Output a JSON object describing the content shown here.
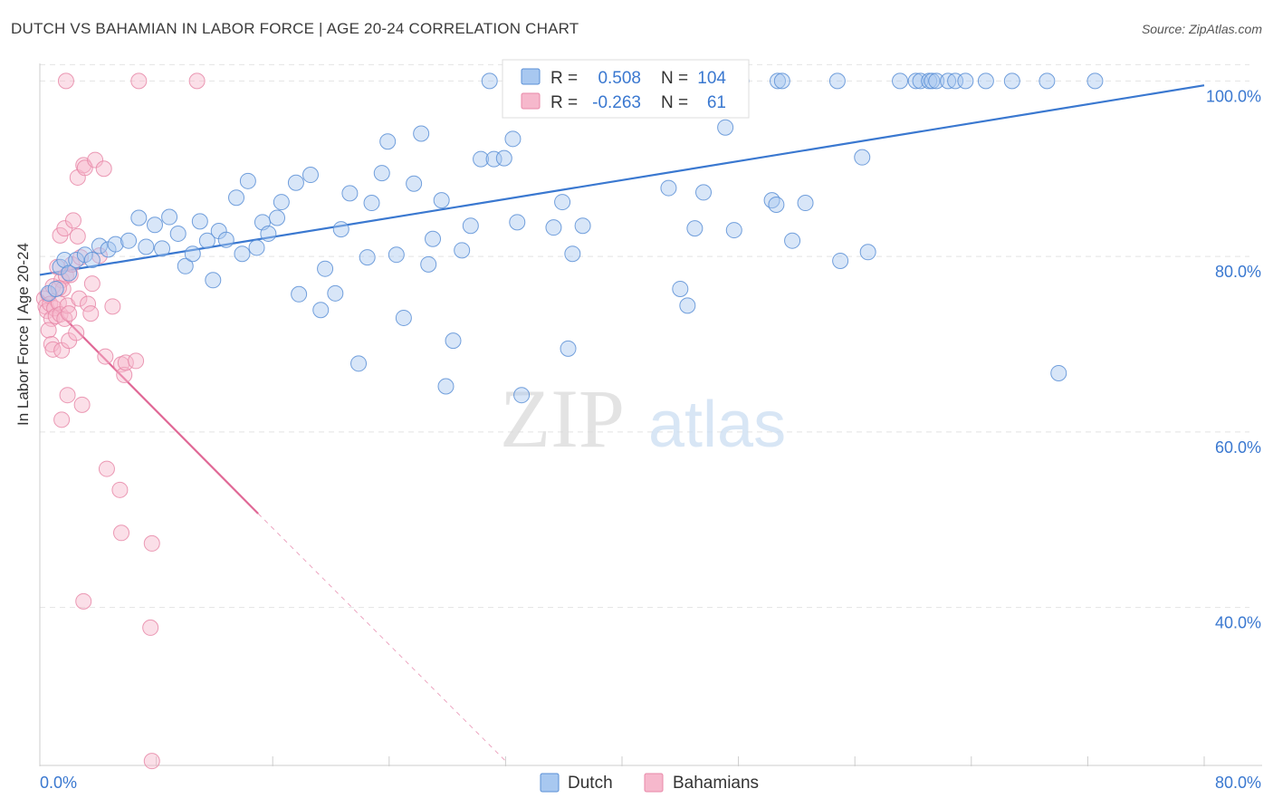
{
  "header": {
    "title": "DUTCH VS BAHAMIAN IN LABOR FORCE | AGE 20-24 CORRELATION CHART",
    "source": "Source: ZipAtlas.com"
  },
  "colors": {
    "dutch_fill": "#a8c8f0",
    "dutch_stroke": "#5a8fd6",
    "dutch_line": "#3a78d0",
    "bahamian_fill": "#f6b8cc",
    "bahamian_stroke": "#e888a8",
    "bahamian_line": "#e06896",
    "axis_text": "#3a78d0",
    "grid": "#e4e4e4"
  },
  "watermark": {
    "zip": "ZIP",
    "atlas": "atlas"
  },
  "legend_box": {
    "rows": [
      {
        "r_label": "R =",
        "r_value": "0.508",
        "n_label": "N =",
        "n_value": "104"
      },
      {
        "r_label": "R =",
        "r_value": "-0.263",
        "n_label": "N =",
        "n_value": "61"
      }
    ]
  },
  "chart_data": {
    "type": "scatter",
    "title": "DUTCH VS BAHAMIAN IN LABOR FORCE | AGE 20-24 CORRELATION CHART",
    "xlabel": "",
    "ylabel": "In Labor Force | Age 20-24",
    "xlim": [
      0,
      80
    ],
    "ylim": [
      22,
      102
    ],
    "x_tick_labels": [
      "0.0%",
      "80.0%"
    ],
    "y_ticks": [
      40,
      60,
      80,
      100
    ],
    "y_tick_labels": [
      "40.0%",
      "60.0%",
      "80.0%",
      "100.0%"
    ],
    "grid": true,
    "legend": "bottom-center",
    "series": [
      {
        "name": "Dutch",
        "R": 0.508,
        "N": 104,
        "trend": {
          "x": [
            0,
            80
          ],
          "y": [
            77.9,
            99.5
          ],
          "style": "solid"
        },
        "points": [
          [
            0.6,
            75.8
          ],
          [
            1.1,
            76.3
          ],
          [
            1.4,
            78.8
          ],
          [
            1.7,
            79.6
          ],
          [
            2.0,
            78.1
          ],
          [
            2.5,
            79.6
          ],
          [
            3.1,
            80.2
          ],
          [
            3.6,
            79.6
          ],
          [
            4.1,
            81.2
          ],
          [
            4.7,
            80.8
          ],
          [
            5.2,
            81.4
          ],
          [
            6.1,
            81.8
          ],
          [
            6.8,
            84.4
          ],
          [
            7.3,
            81.1
          ],
          [
            7.9,
            83.6
          ],
          [
            8.4,
            80.9
          ],
          [
            8.9,
            84.5
          ],
          [
            9.5,
            82.6
          ],
          [
            10.0,
            78.9
          ],
          [
            10.5,
            80.3
          ],
          [
            11.0,
            84.0
          ],
          [
            11.5,
            81.8
          ],
          [
            11.9,
            77.3
          ],
          [
            12.3,
            82.9
          ],
          [
            12.8,
            81.9
          ],
          [
            13.5,
            86.7
          ],
          [
            13.9,
            80.3
          ],
          [
            14.3,
            88.6
          ],
          [
            14.9,
            81.0
          ],
          [
            15.3,
            83.9
          ],
          [
            15.7,
            82.6
          ],
          [
            16.3,
            84.4
          ],
          [
            16.6,
            86.2
          ],
          [
            17.8,
            75.7
          ],
          [
            17.6,
            88.4
          ],
          [
            18.6,
            89.3
          ],
          [
            19.3,
            73.9
          ],
          [
            19.6,
            78.6
          ],
          [
            20.3,
            75.8
          ],
          [
            20.7,
            83.1
          ],
          [
            21.3,
            87.2
          ],
          [
            21.9,
            67.8
          ],
          [
            22.5,
            79.9
          ],
          [
            22.8,
            86.1
          ],
          [
            23.5,
            89.5
          ],
          [
            23.9,
            93.1
          ],
          [
            24.5,
            80.2
          ],
          [
            25.0,
            73.0
          ],
          [
            25.7,
            88.3
          ],
          [
            26.2,
            94.0
          ],
          [
            26.7,
            79.1
          ],
          [
            27.0,
            82.0
          ],
          [
            27.6,
            86.4
          ],
          [
            27.9,
            65.2
          ],
          [
            28.4,
            70.4
          ],
          [
            29.0,
            80.7
          ],
          [
            29.6,
            83.5
          ],
          [
            30.3,
            91.1
          ],
          [
            30.9,
            100.0
          ],
          [
            31.2,
            91.1
          ],
          [
            31.9,
            91.2
          ],
          [
            32.5,
            93.4
          ],
          [
            32.8,
            83.9
          ],
          [
            33.1,
            64.2
          ],
          [
            35.3,
            83.3
          ],
          [
            35.9,
            86.2
          ],
          [
            36.3,
            69.5
          ],
          [
            36.6,
            80.3
          ],
          [
            37.3,
            83.5
          ],
          [
            39.3,
            100.0
          ],
          [
            39.8,
            100.0
          ],
          [
            42.5,
            100.0
          ],
          [
            43.2,
            87.8
          ],
          [
            44.0,
            76.3
          ],
          [
            44.5,
            74.4
          ],
          [
            45.0,
            83.2
          ],
          [
            45.6,
            87.3
          ],
          [
            47.1,
            94.7
          ],
          [
            47.7,
            83.0
          ],
          [
            48.2,
            100.0
          ],
          [
            50.3,
            86.4
          ],
          [
            50.6,
            85.9
          ],
          [
            50.7,
            100.0
          ],
          [
            51.0,
            100.0
          ],
          [
            51.7,
            81.8
          ],
          [
            52.6,
            86.1
          ],
          [
            54.8,
            100.0
          ],
          [
            55.0,
            79.5
          ],
          [
            56.5,
            91.3
          ],
          [
            56.9,
            80.5
          ],
          [
            59.1,
            100.0
          ],
          [
            60.2,
            100.0
          ],
          [
            60.5,
            100.0
          ],
          [
            61.1,
            100.0
          ],
          [
            61.3,
            100.0
          ],
          [
            61.6,
            100.0
          ],
          [
            62.4,
            100.0
          ],
          [
            62.9,
            100.0
          ],
          [
            63.6,
            100.0
          ],
          [
            65.0,
            100.0
          ],
          [
            66.8,
            100.0
          ],
          [
            69.2,
            100.0
          ],
          [
            70.0,
            66.7
          ],
          [
            72.5,
            100.0
          ]
        ]
      },
      {
        "name": "Bahamians",
        "R": -0.263,
        "N": 61,
        "trend": {
          "x": [
            0,
            15
          ],
          "y": [
            75.8,
            50.7
          ],
          "style": "solid",
          "extension": {
            "x": [
              15,
              32
            ],
            "y": [
              50.7,
              22.5
            ],
            "style": "dashed"
          }
        },
        "points": [
          [
            0.3,
            75.2
          ],
          [
            0.4,
            74.3
          ],
          [
            0.5,
            73.8
          ],
          [
            0.6,
            75.6
          ],
          [
            0.7,
            74.6
          ],
          [
            0.8,
            72.9
          ],
          [
            0.9,
            76.6
          ],
          [
            1.0,
            74.1
          ],
          [
            1.1,
            73.2
          ],
          [
            1.2,
            78.8
          ],
          [
            1.3,
            74.7
          ],
          [
            1.4,
            73.4
          ],
          [
            1.5,
            77.3
          ],
          [
            1.6,
            76.3
          ],
          [
            1.7,
            72.9
          ],
          [
            1.8,
            77.8
          ],
          [
            1.9,
            74.4
          ],
          [
            2.0,
            73.5
          ],
          [
            2.1,
            77.9
          ],
          [
            2.2,
            79.1
          ],
          [
            0.6,
            71.6
          ],
          [
            0.8,
            70.0
          ],
          [
            0.9,
            69.4
          ],
          [
            1.3,
            76.4
          ],
          [
            1.4,
            82.4
          ],
          [
            1.5,
            69.3
          ],
          [
            1.7,
            83.2
          ],
          [
            1.9,
            64.2
          ],
          [
            1.5,
            61.4
          ],
          [
            2.0,
            70.4
          ],
          [
            2.3,
            84.1
          ],
          [
            2.5,
            71.3
          ],
          [
            2.6,
            82.3
          ],
          [
            2.7,
            75.2
          ],
          [
            2.8,
            79.9
          ],
          [
            2.6,
            89.0
          ],
          [
            2.9,
            63.1
          ],
          [
            3.0,
            90.4
          ],
          [
            3.1,
            90.1
          ],
          [
            3.3,
            74.6
          ],
          [
            3.5,
            73.5
          ],
          [
            3.6,
            76.9
          ],
          [
            3.8,
            91.0
          ],
          [
            4.1,
            80.1
          ],
          [
            4.4,
            90.0
          ],
          [
            4.5,
            68.6
          ],
          [
            4.6,
            55.8
          ],
          [
            5.0,
            74.3
          ],
          [
            5.5,
            53.4
          ],
          [
            5.6,
            67.7
          ],
          [
            5.6,
            48.5
          ],
          [
            5.8,
            66.5
          ],
          [
            5.9,
            67.9
          ],
          [
            6.6,
            68.1
          ],
          [
            6.8,
            100.0
          ],
          [
            7.7,
            47.3
          ],
          [
            7.6,
            37.7
          ],
          [
            7.7,
            22.5
          ],
          [
            10.8,
            100.0
          ],
          [
            1.8,
            100.0
          ],
          [
            3.0,
            40.7
          ]
        ]
      }
    ]
  },
  "legend": {
    "items": [
      "Dutch",
      "Bahamians"
    ]
  }
}
